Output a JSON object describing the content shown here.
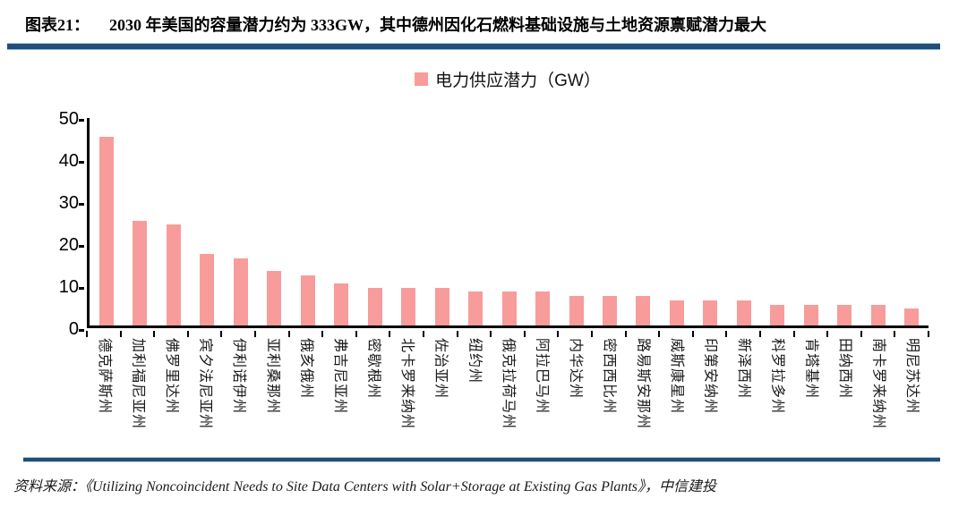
{
  "header": {
    "tag": "图表21：",
    "title": "2030 年美国的容量潜力约为 333GW，其中德州因化石燃料基础设施与土地资源禀赋潜力最大"
  },
  "legend": {
    "label": "电力供应潜力（GW）",
    "swatch_color": "#F89B9B"
  },
  "chart_data": {
    "type": "bar",
    "title": "电力供应潜力（GW）",
    "categories": [
      "德克萨斯州",
      "加利福尼亚州",
      "佛罗里达州",
      "宾夕法尼亚州",
      "伊利诺伊州",
      "亚利桑那州",
      "俄亥俄州",
      "弗吉尼亚州",
      "密歇根州",
      "北卡罗来纳州",
      "佐治亚州",
      "纽约州",
      "俄克拉荷马州",
      "阿拉巴马州",
      "内华达州",
      "密西西比州",
      "路易斯安那州",
      "威斯康星州",
      "印第安纳州",
      "新泽西州",
      "科罗拉多州",
      "肯塔基州",
      "田纳西州",
      "南卡罗来纳州",
      "明尼苏达州"
    ],
    "values": [
      45,
      25,
      24,
      17,
      16,
      13,
      12,
      10,
      9,
      9,
      9,
      8,
      8,
      8,
      7,
      7,
      7,
      6,
      6,
      6,
      5,
      5,
      5,
      5,
      4
    ],
    "xlabel": "",
    "ylabel": "",
    "ylim": [
      0,
      50
    ],
    "yticks": [
      0,
      10,
      20,
      30,
      40,
      50
    ],
    "grid": false,
    "legend_position": "top-center",
    "bar_color": "#F89B9B"
  },
  "footer": {
    "source": "资料来源：《Utilizing Noncoincident Needs to Site Data Centers with Solar+Storage at Existing Gas Plants》，中信建投"
  },
  "colors": {
    "accent_rule": "#1F4E79",
    "rule_edge": "#9CC2E5",
    "bar_pink": "#F89B9B",
    "axis_black": "#000000"
  }
}
